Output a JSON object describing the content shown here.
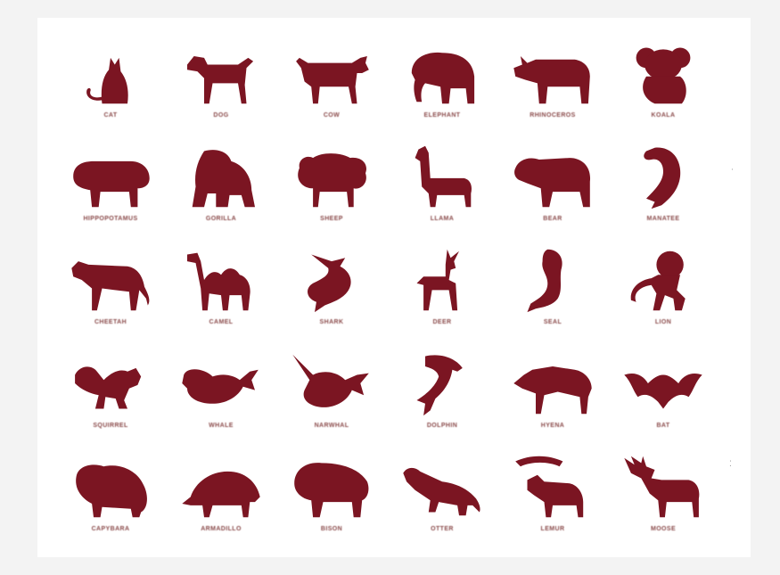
{
  "colors": {
    "silhouette": "#7b1522",
    "background": "#ffffff"
  },
  "animals": [
    {
      "label": "CAT",
      "icon": "cat-icon"
    },
    {
      "label": "DOG",
      "icon": "dog-icon"
    },
    {
      "label": "COW",
      "icon": "cow-icon"
    },
    {
      "label": "ELEPHANT",
      "icon": "elephant-icon"
    },
    {
      "label": "RHINOCEROS",
      "icon": "rhinoceros-icon"
    },
    {
      "label": "KOALA",
      "icon": "koala-icon"
    },
    {
      "label": "HIPPOPOTAMUS",
      "icon": "hippopotamus-icon"
    },
    {
      "label": "GORILLA",
      "icon": "gorilla-icon"
    },
    {
      "label": "SHEEP",
      "icon": "sheep-icon"
    },
    {
      "label": "LLAMA",
      "icon": "llama-icon"
    },
    {
      "label": "BEAR",
      "icon": "bear-icon"
    },
    {
      "label": "MANATEE",
      "icon": "manatee-icon"
    },
    {
      "label": "CHEETAH",
      "icon": "cheetah-icon"
    },
    {
      "label": "CAMEL",
      "icon": "camel-icon"
    },
    {
      "label": "SHARK",
      "icon": "shark-icon"
    },
    {
      "label": "DEER",
      "icon": "deer-icon"
    },
    {
      "label": "SEAL",
      "icon": "seal-icon"
    },
    {
      "label": "LION",
      "icon": "lion-icon"
    },
    {
      "label": "SQUIRREL",
      "icon": "squirrel-icon"
    },
    {
      "label": "WHALE",
      "icon": "whale-icon"
    },
    {
      "label": "NARWHAL",
      "icon": "narwhal-icon"
    },
    {
      "label": "DOLPHIN",
      "icon": "dolphin-icon"
    },
    {
      "label": "HYENA",
      "icon": "hyena-icon"
    },
    {
      "label": "BAT",
      "icon": "bat-icon"
    },
    {
      "label": "CAPYBARA",
      "icon": "capybara-icon"
    },
    {
      "label": "ARMADILLO",
      "icon": "armadillo-icon"
    },
    {
      "label": "BISON",
      "icon": "bison-icon"
    },
    {
      "label": "OTTER",
      "icon": "otter-icon"
    },
    {
      "label": "LEMUR",
      "icon": "lemur-icon"
    },
    {
      "label": "MOOSE",
      "icon": "moose-icon"
    }
  ]
}
